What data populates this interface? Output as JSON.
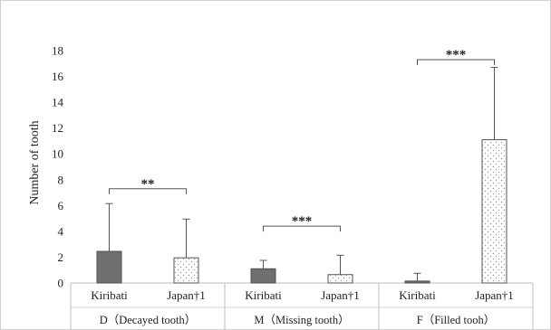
{
  "chart_data": {
    "type": "bar",
    "ylabel": "Number of tooth",
    "ylim": [
      0,
      18
    ],
    "yticks": [
      0,
      2,
      4,
      6,
      8,
      10,
      12,
      14,
      16,
      18
    ],
    "groups": [
      {
        "label": "D（Decayed tooth）",
        "bars": [
          {
            "category": "Kiribati",
            "value": 2.45,
            "sd_upper": 6.15
          },
          {
            "category": "Japan†1",
            "value": 1.95,
            "sd_upper": 4.95
          }
        ],
        "significance": "**"
      },
      {
        "label": "M（Missing tooth）",
        "bars": [
          {
            "category": "Kiribati",
            "value": 1.1,
            "sd_upper": 1.75
          },
          {
            "category": "Japan†1",
            "value": 0.65,
            "sd_upper": 2.15
          }
        ],
        "significance": "***"
      },
      {
        "label": "F（Filled tooh）",
        "bars": [
          {
            "category": "Kiribati",
            "value": 0.15,
            "sd_upper": 0.75
          },
          {
            "category": "Japan†1",
            "value": 11.1,
            "sd_upper": 16.7
          }
        ],
        "significance": "***"
      }
    ],
    "colors": {
      "Kiribati": "#707070",
      "Japan†1": "dotted-white"
    },
    "grid": false
  }
}
